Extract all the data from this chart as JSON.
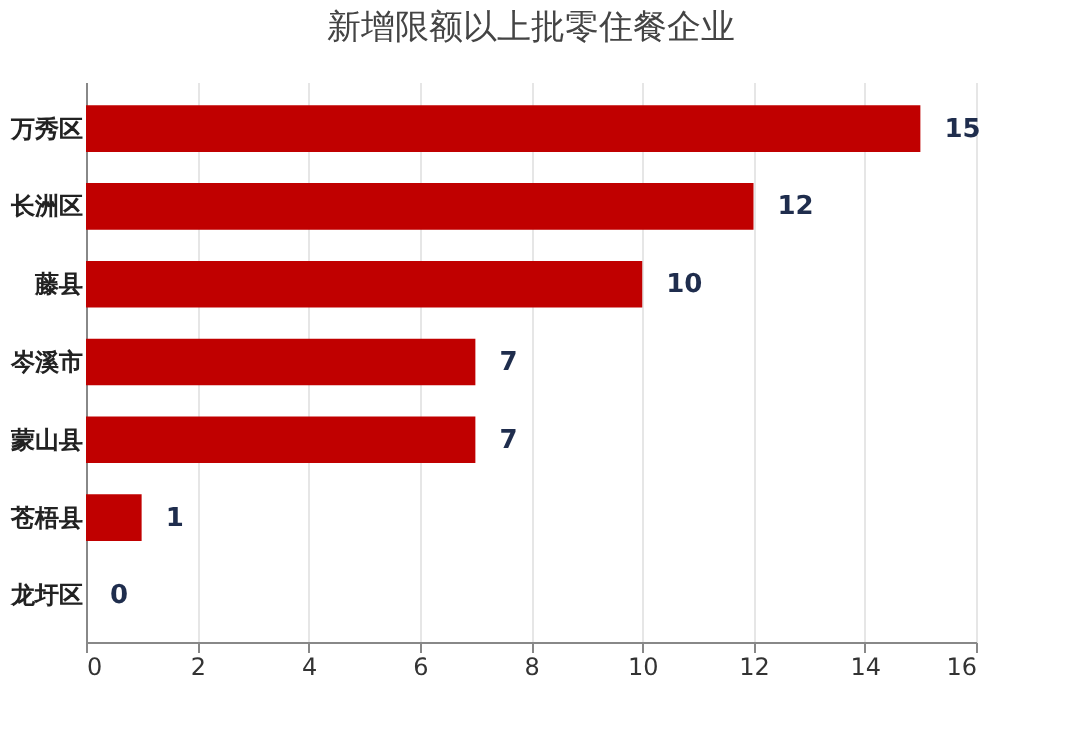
{
  "chart_data": {
    "type": "bar",
    "orientation": "horizontal",
    "title": "新增限额以上批零住餐企业",
    "categories": [
      "万秀区",
      "长洲区",
      "藤县",
      "岑溪市",
      "蒙山县",
      "苍梧县",
      "龙圩区"
    ],
    "values": [
      15,
      12,
      10,
      7,
      7,
      1,
      0
    ],
    "color": "#c00000",
    "xlim": [
      0,
      16
    ],
    "xticks": [
      0,
      2,
      4,
      6,
      8,
      10,
      12,
      14,
      16
    ],
    "grid": "x",
    "data_labels": true
  }
}
